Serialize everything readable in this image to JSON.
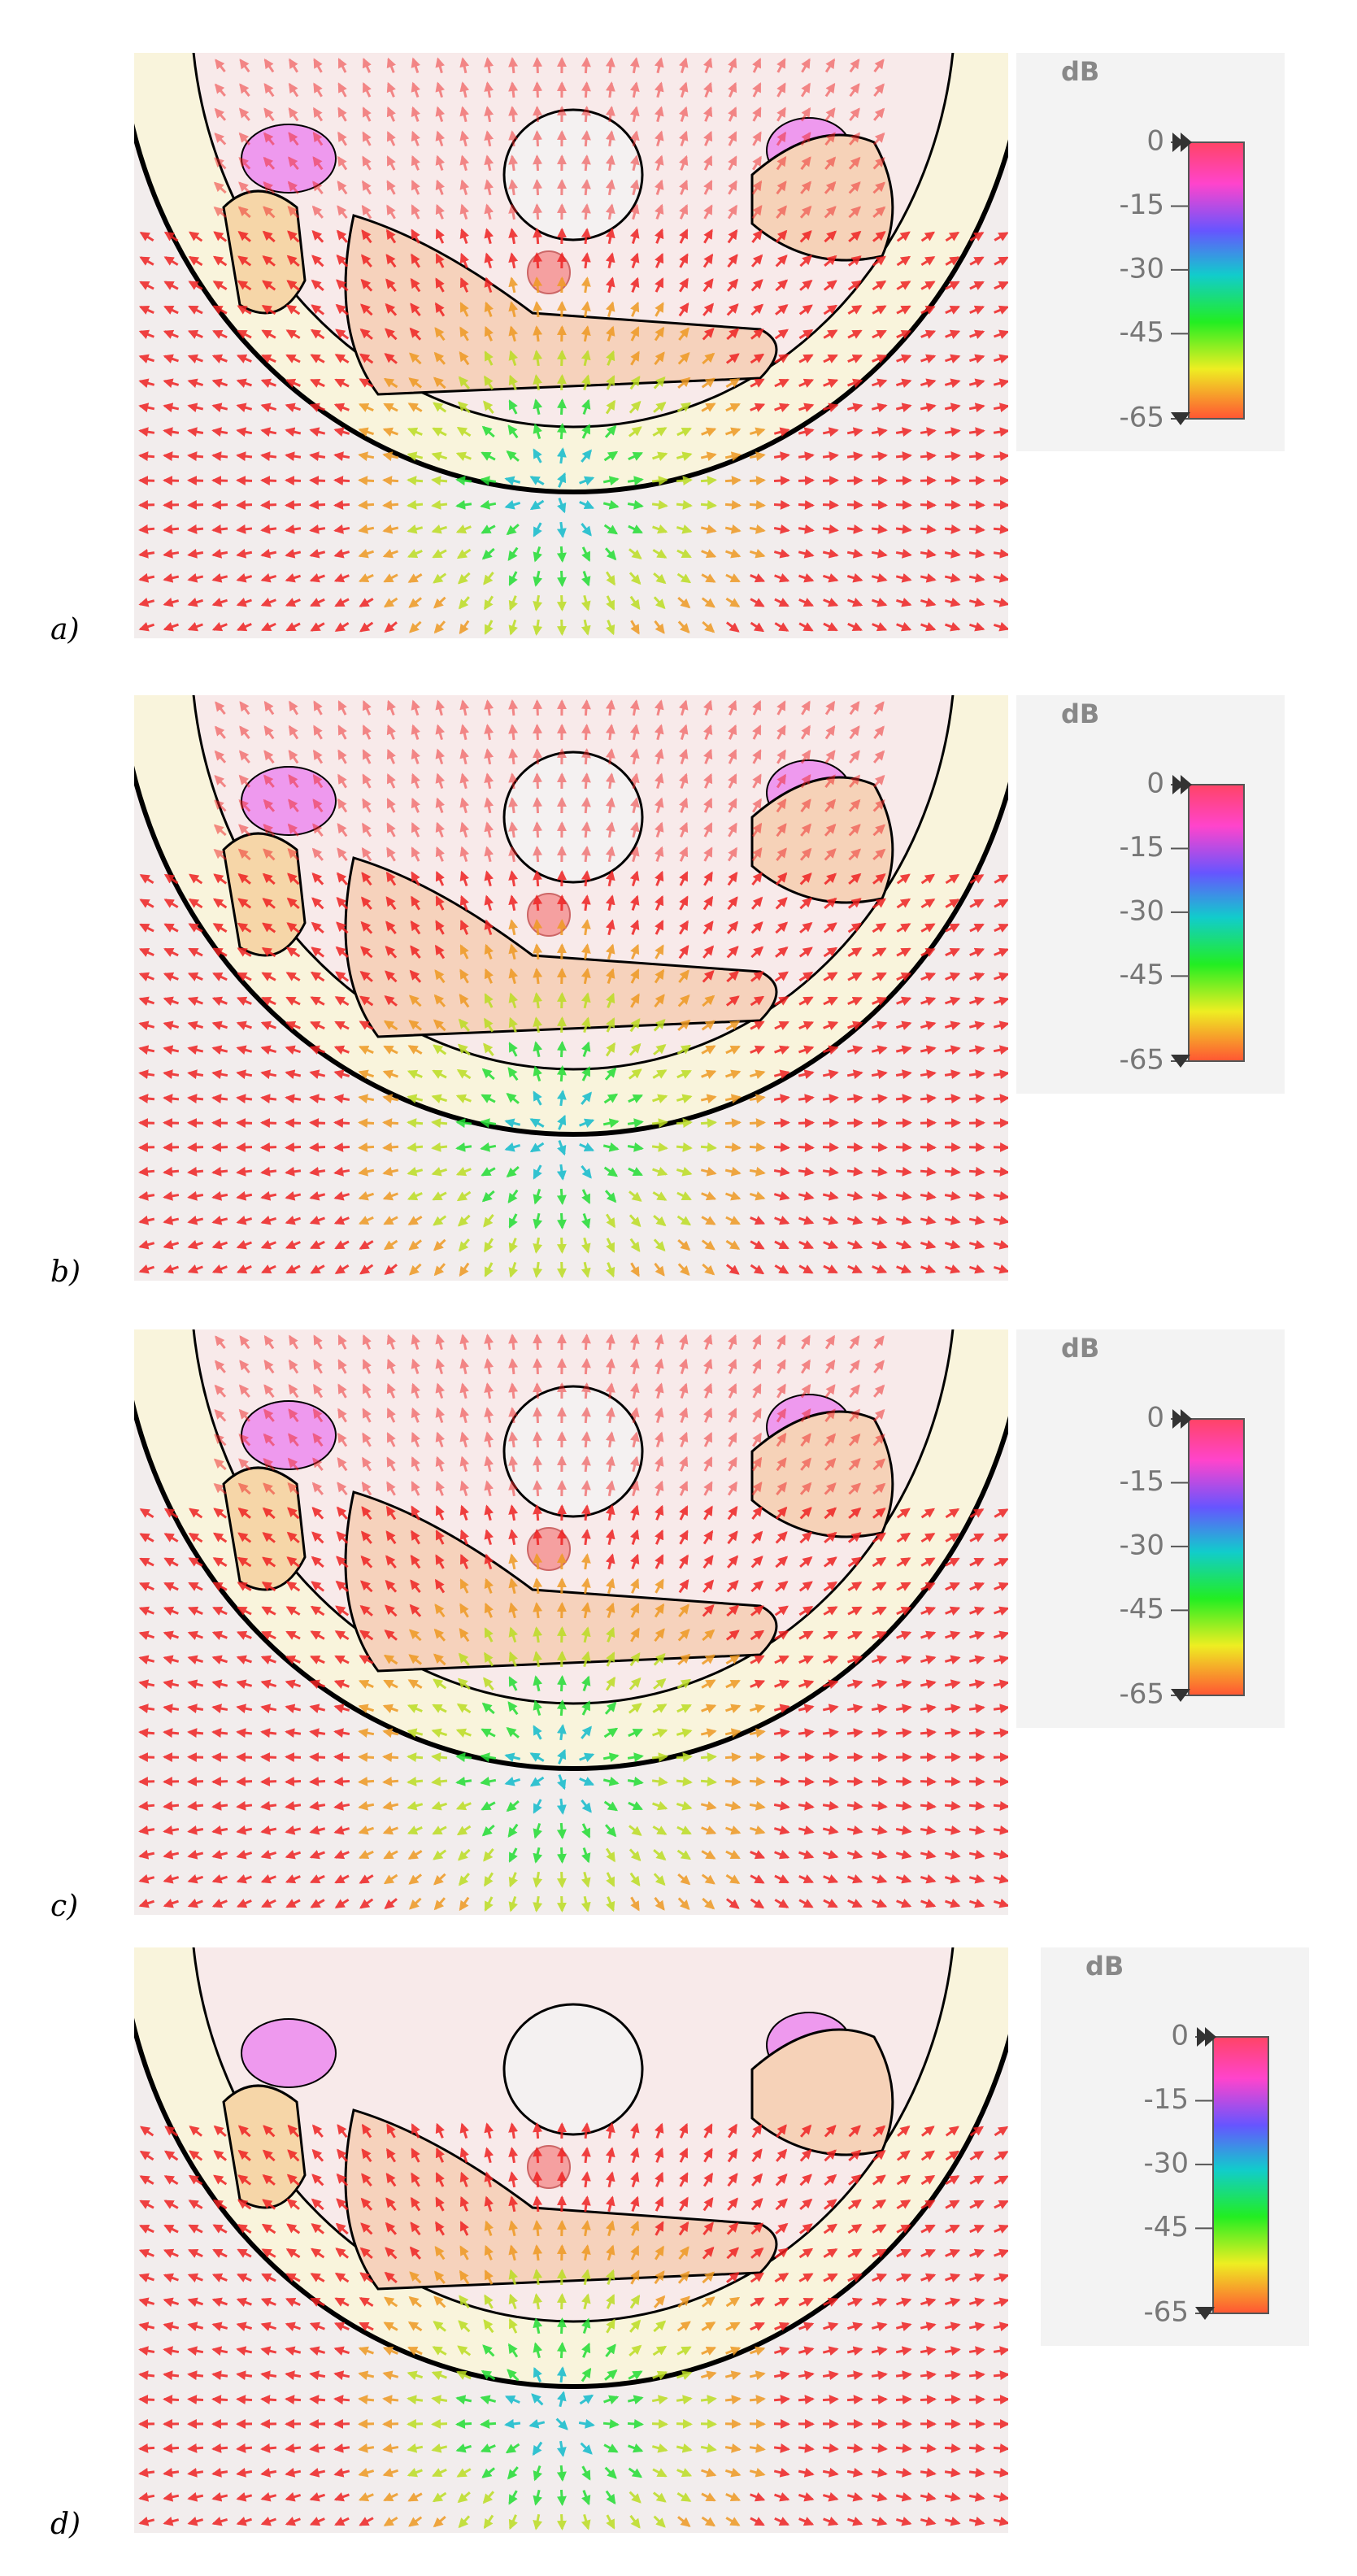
{
  "panels": [
    {
      "label": "a)",
      "colorbar": {
        "unit": "dB",
        "lim": [
          0,
          -65
        ],
        "ticks": [
          0,
          -15,
          -30,
          -45,
          -65
        ]
      }
    },
    {
      "label": "b)",
      "colorbar": {
        "unit": "dB",
        "lim": [
          0,
          -65
        ],
        "ticks": [
          0,
          -15,
          -30,
          -45,
          -65
        ]
      }
    },
    {
      "label": "c)",
      "colorbar": {
        "unit": "dB",
        "lim": [
          0,
          -65
        ],
        "ticks": [
          0,
          -15,
          -30,
          -45,
          -65
        ]
      }
    },
    {
      "label": "d)",
      "colorbar": {
        "unit": "dB",
        "lim": [
          0,
          -65
        ],
        "ticks": [
          0,
          -15,
          -30,
          -45,
          -65
        ]
      }
    }
  ]
}
